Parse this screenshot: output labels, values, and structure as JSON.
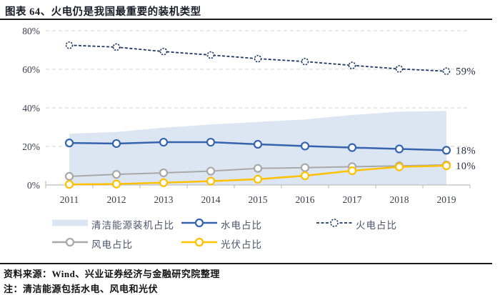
{
  "header": {
    "title": "图表 64、火电仍是我国最重要的装机类型"
  },
  "chart_data": {
    "type": "line",
    "title": "火电仍是我国最重要的装机类型",
    "categories": [
      "2011",
      "2012",
      "2013",
      "2014",
      "2015",
      "2016",
      "2017",
      "2018",
      "2019"
    ],
    "yticks": [
      0,
      20,
      40,
      60,
      80
    ],
    "ytick_labels": [
      "0%",
      "20%",
      "40%",
      "60%",
      "80%"
    ],
    "ylim": [
      0,
      84
    ],
    "grid": "horizontal-dashed",
    "legend_position": "bottom",
    "series": [
      {
        "name": "清洁能源装机占比",
        "type": "area",
        "color": "#dce6f2",
        "values": [
          26.6,
          27.5,
          29.7,
          31.4,
          32.7,
          34.0,
          36.3,
          38.0,
          38.4
        ]
      },
      {
        "name": "水电占比",
        "type": "line",
        "color": "#3563ae",
        "end_label": "18%",
        "values": [
          21.8,
          21.5,
          22.2,
          22.2,
          21.1,
          20.2,
          19.4,
          18.7,
          18.0
        ]
      },
      {
        "name": "火电占比",
        "type": "line",
        "color": "#1f3864",
        "dashed": true,
        "end_label": "59%",
        "values": [
          72.5,
          71.5,
          69.2,
          67.4,
          65.5,
          64.0,
          62.0,
          60.2,
          59.0
        ]
      },
      {
        "name": "风电占比",
        "type": "line",
        "color": "#a8a8a8",
        "values": [
          4.5,
          5.5,
          6.3,
          7.2,
          8.6,
          9.0,
          9.5,
          9.9,
          10.4
        ]
      },
      {
        "name": "光伏占比",
        "type": "line",
        "color": "#ffc000",
        "end_label": "10%",
        "values": [
          0.3,
          0.5,
          1.2,
          2.0,
          3.0,
          4.8,
          7.4,
          9.4,
          10.0
        ]
      }
    ],
    "colors": {
      "axis": "#bfbfbf",
      "grid": "#d9d9d9",
      "tick_label": "#3c3c50",
      "end_label": "#2c2c42"
    }
  },
  "footer": {
    "source": "资料来源：Wind、兴业证券经济与金融研究院整理",
    "note": "注：清洁能源包括水电、风电和光伏"
  }
}
